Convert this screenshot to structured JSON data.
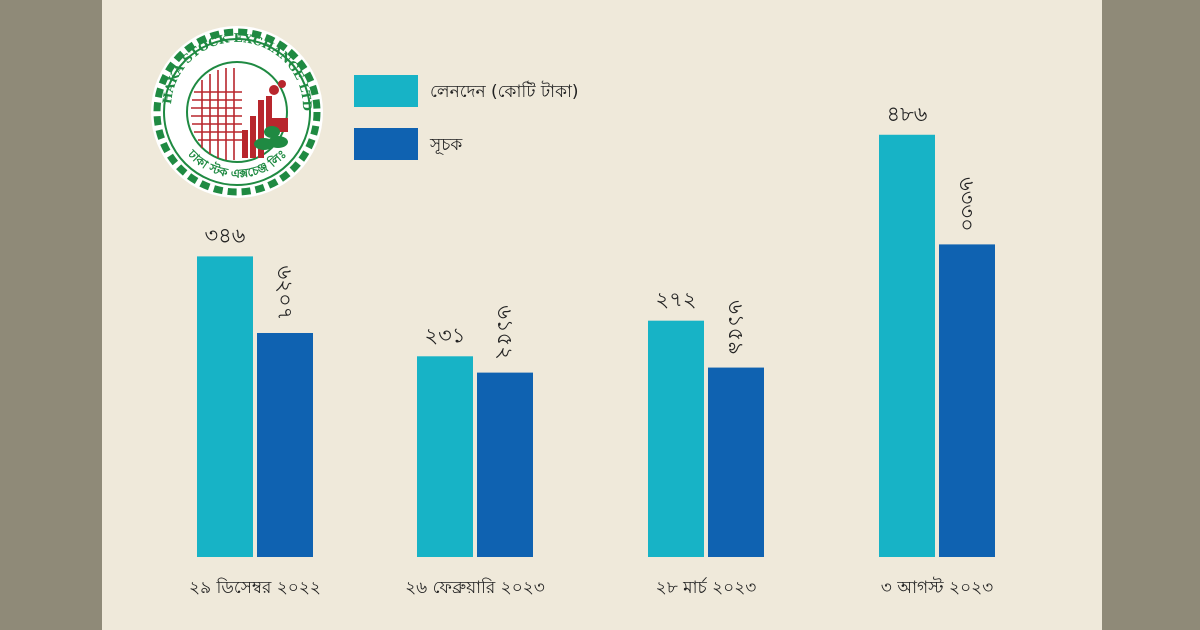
{
  "logo": {
    "text_top": "DHAKA STOCK EXCHANGE LTD.",
    "text_bottom": "ঢাকা স্টক এক্সচেঞ্জ লিঃ"
  },
  "colors": {
    "turnover": "#17b3c6",
    "index": "#0f62b1",
    "panel_background": "#efe9da",
    "outer_background": "#8f8a78",
    "logo_red": "#b8262d",
    "logo_green": "#1f8a42"
  },
  "chart_data": {
    "type": "bar",
    "title": "",
    "xlabel": "",
    "ylabel": "",
    "grid": false,
    "legend_position": "top-left",
    "categories": [
      "২৯ ডিসেম্বর ২০২২",
      "২৬ ফেব্রুয়ারি ২০২৩",
      "২৮ মার্চ ২০২৩",
      "৩ আগস্ট ২০২৩"
    ],
    "series": [
      {
        "name": "লেনদেন (কোটি টাকা)",
        "color": "#17b3c6",
        "values": [
          346,
          231,
          272,
          486
        ],
        "labels": [
          "৩৪৬",
          "২৩১",
          "২৭২",
          "৪৮৬"
        ],
        "label_orientation": "horizontal"
      },
      {
        "name": "সূচক",
        "color": "#0f62b1",
        "values": [
          6207,
          6152,
          6159,
          6330
        ],
        "labels": [
          "৬২০৭",
          "৬১৫২",
          "৬১৫৯",
          "৬৩৩০"
        ],
        "label_orientation": "vertical"
      }
    ]
  }
}
